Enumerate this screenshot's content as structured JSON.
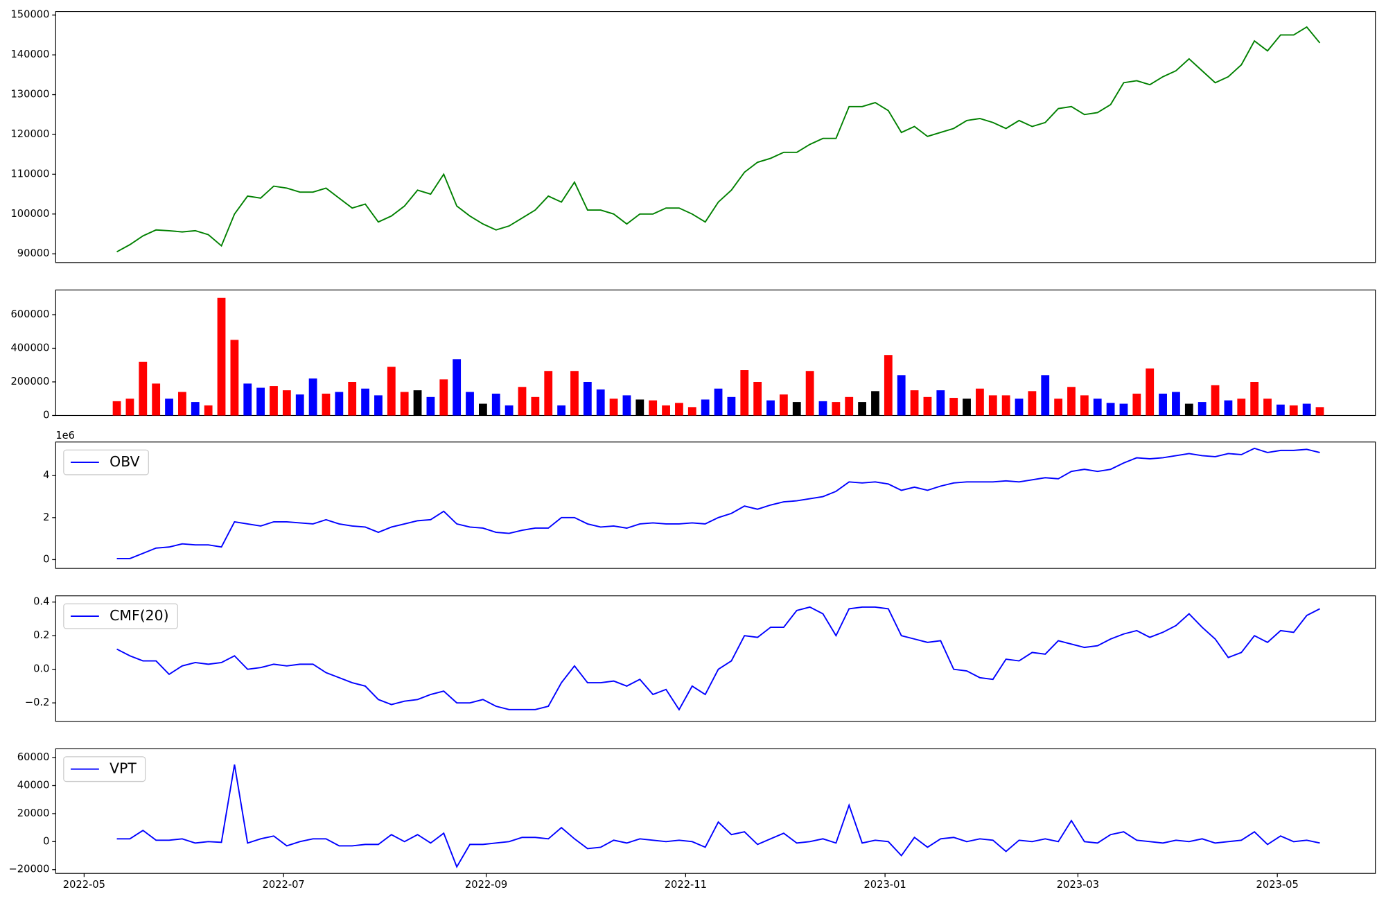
{
  "chart_data": [
    {
      "type": "line",
      "color": "green",
      "x": [
        10,
        14,
        18,
        22,
        26,
        30,
        34,
        38,
        42,
        46,
        50,
        54,
        58,
        62,
        66,
        70,
        74,
        78,
        82,
        86,
        90,
        94,
        98,
        102,
        106,
        110,
        114,
        118,
        122,
        126,
        130,
        134,
        138,
        142,
        146,
        150,
        154,
        158,
        162,
        166,
        170,
        174,
        178,
        182,
        186,
        190,
        194,
        198,
        202,
        206,
        210,
        214,
        218,
        222,
        226,
        230,
        234,
        238,
        242,
        246,
        250,
        254,
        258,
        262,
        266,
        270,
        274,
        278,
        282,
        286,
        290,
        294,
        298,
        302,
        306,
        310,
        314,
        318,
        322,
        326,
        330,
        334,
        338,
        342,
        346,
        350,
        354,
        358,
        362,
        366,
        370,
        374,
        378
      ],
      "values": [
        90500,
        92300,
        94500,
        96000,
        95800,
        95500,
        95800,
        94800,
        92000,
        100000,
        104500,
        104000,
        107000,
        106500,
        105500,
        105500,
        106500,
        104000,
        101500,
        102500,
        98000,
        99500,
        102000,
        106000,
        105000,
        110000,
        102000,
        99500,
        97500,
        96000,
        97000,
        99000,
        101000,
        104500,
        103000,
        108000,
        101000,
        101000,
        100000,
        97500,
        100000,
        100000,
        101500,
        101500,
        100000,
        98000,
        103000,
        106000,
        110500,
        113000,
        114000,
        115500,
        115500,
        117500,
        119000,
        119000,
        127000,
        127000,
        128000,
        126000,
        120500,
        122000,
        119500,
        120500,
        121500,
        123500,
        124000,
        123000,
        121500,
        123500,
        122000,
        123000,
        126500,
        127000,
        125000,
        125500,
        127500,
        133000,
        133500,
        132500,
        134500,
        136000,
        139000,
        136000,
        133000,
        134500,
        137500,
        143500,
        141000,
        145000,
        145000,
        147000,
        143000
      ],
      "xlim": [
        -8.7,
        395
      ],
      "ylim": [
        87800,
        150900
      ],
      "yticks": [
        90000,
        100000,
        110000,
        120000,
        130000,
        140000,
        150000
      ]
    },
    {
      "type": "bar",
      "x": [
        10,
        14,
        18,
        22,
        26,
        30,
        34,
        38,
        42,
        46,
        50,
        54,
        58,
        62,
        66,
        70,
        74,
        78,
        82,
        86,
        90,
        94,
        98,
        102,
        106,
        110,
        114,
        118,
        122,
        126,
        130,
        134,
        138,
        142,
        146,
        150,
        154,
        158,
        162,
        166,
        170,
        174,
        178,
        182,
        186,
        190,
        194,
        198,
        202,
        206,
        210,
        214,
        218,
        222,
        226,
        230,
        234,
        238,
        242,
        246,
        250,
        254,
        258,
        262,
        266,
        270,
        274,
        278,
        282,
        286,
        290,
        294,
        298,
        302,
        306,
        310,
        314,
        318,
        322,
        326,
        330,
        334,
        338,
        342,
        346,
        350,
        354,
        358,
        362,
        366,
        370,
        374,
        378
      ],
      "values": [
        85000,
        100000,
        320000,
        190000,
        100000,
        140000,
        80000,
        60000,
        700000,
        450000,
        190000,
        165000,
        175000,
        150000,
        125000,
        220000,
        130000,
        140000,
        200000,
        160000,
        120000,
        290000,
        140000,
        150000,
        110000,
        215000,
        335000,
        140000,
        70000,
        130000,
        60000,
        170000,
        110000,
        265000,
        60000,
        265000,
        200000,
        155000,
        100000,
        120000,
        95000,
        90000,
        60000,
        75000,
        50000,
        95000,
        160000,
        110000,
        270000,
        200000,
        90000,
        125000,
        80000,
        265000,
        85000,
        80000,
        110000,
        80000,
        145000,
        360000,
        240000,
        150000,
        110000,
        150000,
        105000,
        100000,
        160000,
        120000,
        120000,
        100000,
        145000,
        240000,
        100000,
        170000,
        120000,
        100000,
        75000,
        70000,
        130000,
        280000,
        130000,
        140000,
        70000,
        80000,
        180000,
        90000,
        100000,
        200000,
        100000,
        65000,
        60000,
        70000,
        50000
      ],
      "colors": [
        "red",
        "red",
        "red",
        "red",
        "blue",
        "red",
        "blue",
        "red",
        "red",
        "red",
        "blue",
        "blue",
        "red",
        "red",
        "blue",
        "blue",
        "red",
        "blue",
        "red",
        "blue",
        "blue",
        "red",
        "red",
        "black",
        "blue",
        "red",
        "blue",
        "blue",
        "black",
        "blue",
        "blue",
        "red",
        "red",
        "red",
        "blue",
        "red",
        "blue",
        "blue",
        "red",
        "blue",
        "black",
        "red",
        "red",
        "red",
        "red",
        "blue",
        "blue",
        "blue",
        "red",
        "red",
        "blue",
        "red",
        "black",
        "red",
        "blue",
        "red",
        "red",
        "black",
        "black",
        "red",
        "blue",
        "red",
        "red",
        "blue",
        "red",
        "black",
        "red",
        "red",
        "red",
        "blue",
        "red",
        "blue",
        "red",
        "red",
        "red",
        "blue",
        "blue",
        "blue",
        "red",
        "red",
        "blue",
        "blue",
        "black",
        "blue",
        "red",
        "blue",
        "red",
        "red",
        "red",
        "blue",
        "red",
        "blue",
        "red"
      ],
      "xlim": [
        -8.7,
        395
      ],
      "ylim": [
        0,
        747000
      ],
      "yticks": [
        0,
        200000,
        400000,
        600000
      ]
    },
    {
      "type": "line",
      "y_offset_label": "1e6",
      "legend": "upper left",
      "x": [
        10,
        14,
        18,
        22,
        26,
        30,
        34,
        38,
        42,
        46,
        50,
        54,
        58,
        62,
        66,
        70,
        74,
        78,
        82,
        86,
        90,
        94,
        98,
        102,
        106,
        110,
        114,
        118,
        122,
        126,
        130,
        134,
        138,
        142,
        146,
        150,
        154,
        158,
        162,
        166,
        170,
        174,
        178,
        182,
        186,
        190,
        194,
        198,
        202,
        206,
        210,
        214,
        218,
        222,
        226,
        230,
        234,
        238,
        242,
        246,
        250,
        254,
        258,
        262,
        266,
        270,
        274,
        278,
        282,
        286,
        290,
        294,
        298,
        302,
        306,
        310,
        314,
        318,
        322,
        326,
        330,
        334,
        338,
        342,
        346,
        350,
        354,
        358,
        362,
        366,
        370,
        374,
        378
      ],
      "series": [
        {
          "name": "OBV",
          "color": "blue",
          "values": [
            0.05,
            0.05,
            0.3,
            0.55,
            0.6,
            0.75,
            0.7,
            0.7,
            0.6,
            1.8,
            1.7,
            1.6,
            1.8,
            1.8,
            1.75,
            1.7,
            1.9,
            1.7,
            1.6,
            1.55,
            1.3,
            1.55,
            1.7,
            1.85,
            1.9,
            2.3,
            1.7,
            1.55,
            1.5,
            1.3,
            1.25,
            1.4,
            1.5,
            1.5,
            2.0,
            2.0,
            1.7,
            1.55,
            1.6,
            1.5,
            1.7,
            1.75,
            1.7,
            1.7,
            1.75,
            1.7,
            2.0,
            2.2,
            2.55,
            2.4,
            2.6,
            2.75,
            2.8,
            2.9,
            3.0,
            3.25,
            3.7,
            3.65,
            3.7,
            3.6,
            3.3,
            3.45,
            3.3,
            3.5,
            3.65,
            3.7,
            3.7,
            3.7,
            3.75,
            3.7,
            3.8,
            3.9,
            3.85,
            4.2,
            4.3,
            4.2,
            4.3,
            4.6,
            4.85,
            4.8,
            4.85,
            4.95,
            5.05,
            4.95,
            4.9,
            5.05,
            5.0,
            5.3,
            5.1,
            5.2,
            5.2,
            5.25,
            5.1
          ]
        }
      ],
      "xlim": [
        -8.7,
        395
      ],
      "ylim": [
        -0.42,
        5.6
      ],
      "yticks": [
        0,
        2,
        4
      ]
    },
    {
      "type": "line",
      "legend": "upper left",
      "x": [
        10,
        14,
        18,
        22,
        26,
        30,
        34,
        38,
        42,
        46,
        50,
        54,
        58,
        62,
        66,
        70,
        74,
        78,
        82,
        86,
        90,
        94,
        98,
        102,
        106,
        110,
        114,
        118,
        122,
        126,
        130,
        134,
        138,
        142,
        146,
        150,
        154,
        158,
        162,
        166,
        170,
        174,
        178,
        182,
        186,
        190,
        194,
        198,
        202,
        206,
        210,
        214,
        218,
        222,
        226,
        230,
        234,
        238,
        242,
        246,
        250,
        254,
        258,
        262,
        266,
        270,
        274,
        278,
        282,
        286,
        290,
        294,
        298,
        302,
        306,
        310,
        314,
        318,
        322,
        326,
        330,
        334,
        338,
        342,
        346,
        350,
        354,
        358,
        362,
        366,
        370,
        374,
        378
      ],
      "series": [
        {
          "name": "CMF(20)",
          "color": "blue",
          "values": [
            0.12,
            0.08,
            0.05,
            0.05,
            -0.03,
            0.02,
            0.04,
            0.03,
            0.04,
            0.08,
            0,
            0.01,
            0.03,
            0.02,
            0.03,
            0.03,
            -0.02,
            -0.05,
            -0.08,
            -0.1,
            -0.18,
            -0.21,
            -0.19,
            -0.18,
            -0.15,
            -0.13,
            -0.2,
            -0.2,
            -0.18,
            -0.22,
            -0.24,
            -0.24,
            -0.24,
            -0.22,
            -0.08,
            0.02,
            -0.08,
            -0.08,
            -0.07,
            -0.1,
            -0.06,
            -0.15,
            -0.12,
            -0.24,
            -0.1,
            -0.15,
            0,
            0.05,
            0.2,
            0.19,
            0.25,
            0.25,
            0.35,
            0.37,
            0.33,
            0.2,
            0.36,
            0.37,
            0.37,
            0.36,
            0.2,
            0.18,
            0.16,
            0.17,
            0,
            -0.01,
            -0.05,
            -0.06,
            0.06,
            0.05,
            0.1,
            0.09,
            0.17,
            0.15,
            0.13,
            0.14,
            0.18,
            0.21,
            0.23,
            0.19,
            0.22,
            0.26,
            0.33,
            0.25,
            0.18,
            0.07,
            0.1,
            0.2,
            0.16,
            0.23,
            0.22,
            0.32,
            0.36
          ]
        }
      ],
      "xlim": [
        -8.7,
        395
      ],
      "ylim": [
        -0.31,
        0.437
      ],
      "yticks": [
        {
          "value": -0.2,
          "label": "−0.2"
        },
        {
          "value": 0,
          "label": "0.0"
        },
        0.2,
        0.4
      ]
    },
    {
      "type": "line",
      "legend": "upper left",
      "x": [
        10,
        14,
        18,
        22,
        26,
        30,
        34,
        38,
        42,
        46,
        50,
        54,
        58,
        62,
        66,
        70,
        74,
        78,
        82,
        86,
        90,
        94,
        98,
        102,
        106,
        110,
        114,
        118,
        122,
        126,
        130,
        134,
        138,
        142,
        146,
        150,
        154,
        158,
        162,
        166,
        170,
        174,
        178,
        182,
        186,
        190,
        194,
        198,
        202,
        206,
        210,
        214,
        218,
        222,
        226,
        230,
        234,
        238,
        242,
        246,
        250,
        254,
        258,
        262,
        266,
        270,
        274,
        278,
        282,
        286,
        290,
        294,
        298,
        302,
        306,
        310,
        314,
        318,
        322,
        326,
        330,
        334,
        338,
        342,
        346,
        350,
        354,
        358,
        362,
        366,
        370,
        374,
        378
      ],
      "series": [
        {
          "name": "VPT",
          "color": "blue",
          "values": [
            2000,
            2000,
            8000,
            1000,
            1000,
            2000,
            -1000,
            0,
            -500,
            55000,
            -1000,
            2000,
            4000,
            -3000,
            0,
            2000,
            2000,
            -3000,
            -3000,
            -2000,
            -2000,
            5000,
            0,
            5000,
            -1000,
            6000,
            -18000,
            -2000,
            -2000,
            -1000,
            0,
            3000,
            3000,
            2000,
            10000,
            2000,
            -5000,
            -4000,
            1000,
            -1000,
            2000,
            1000,
            0,
            1000,
            0,
            -4000,
            14000,
            5000,
            7000,
            -2000,
            2000,
            6000,
            -1000,
            0,
            2000,
            -1000,
            26000,
            -1000,
            1000,
            0,
            -10000,
            3000,
            -4000,
            2000,
            3000,
            0,
            2000,
            1000,
            -7000,
            1000,
            0,
            2000,
            0,
            15000,
            0,
            -1000,
            5000,
            7000,
            1000,
            0,
            -1000,
            1000,
            0,
            2000,
            -1000,
            0,
            1000,
            7000,
            -2000,
            4000,
            0,
            1000,
            -1000
          ]
        }
      ],
      "xlim": [
        -8.7,
        395
      ],
      "ylim": [
        -22700,
        66300
      ],
      "yticks": [
        {
          "value": -20000,
          "label": "−20000"
        },
        0,
        20000,
        40000,
        60000
      ],
      "xticks": [
        {
          "value": 0,
          "label": "2022-05"
        },
        {
          "value": 61,
          "label": "2022-07"
        },
        {
          "value": 123,
          "label": "2022-09"
        },
        {
          "value": 184,
          "label": "2022-11"
        },
        {
          "value": 245,
          "label": "2023-01"
        },
        {
          "value": 304,
          "label": "2023-03"
        },
        {
          "value": 365,
          "label": "2023-05"
        }
      ]
    }
  ]
}
